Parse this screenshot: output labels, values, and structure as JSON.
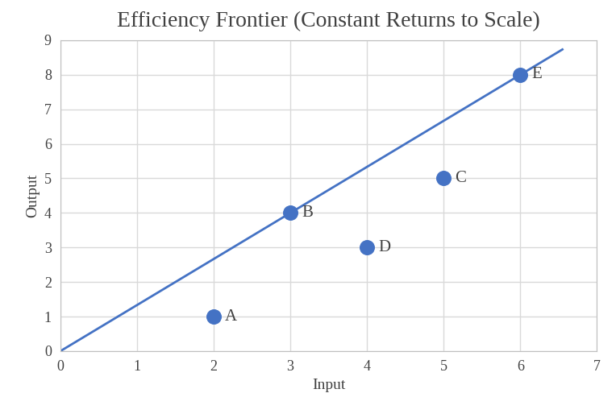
{
  "chart_data": {
    "type": "scatter",
    "title": "Efficiency Frontier (Constant Returns to Scale)",
    "x_label": "Input",
    "y_label": "Output",
    "x": [
      2,
      3,
      5,
      4,
      6
    ],
    "values": [
      1,
      4,
      5,
      3,
      8
    ],
    "labels": [
      "A",
      "B",
      "C",
      "D",
      "E"
    ],
    "color": "#4472c4",
    "marker": "o",
    "frontier": {
      "type": "line",
      "x": [
        0,
        6.55
      ],
      "values": [
        0,
        8.73
      ],
      "color": "#4472c4",
      "line_style": "solid"
    },
    "xlim": [
      0,
      7
    ],
    "ylim": [
      0,
      9
    ],
    "xticks": [
      0,
      1,
      2,
      3,
      4,
      5,
      6,
      7
    ],
    "yticks": [
      0,
      1,
      2,
      3,
      4,
      5,
      6,
      7,
      8,
      9
    ],
    "grid": true
  }
}
